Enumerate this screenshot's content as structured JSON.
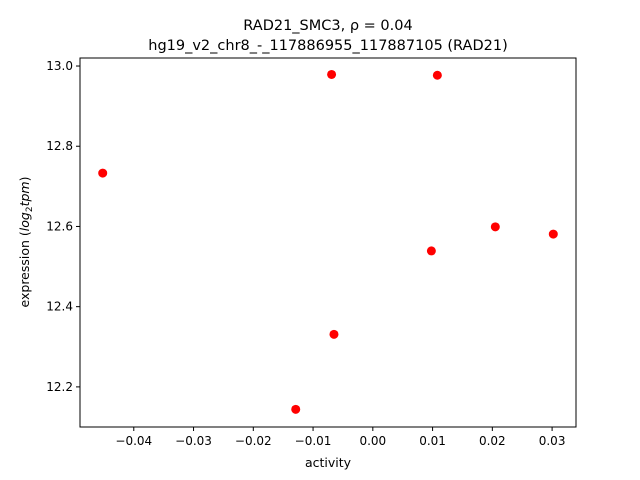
{
  "chart_data": {
    "type": "scatter",
    "title_line1": "RAD21_SMC3, ρ = 0.04",
    "title_line2": "hg19_v2_chr8_-_117886955_117887105 (RAD21)",
    "xlabel": "activity",
    "ylabel_main": "expression (",
    "ylabel_log": "log",
    "ylabel_sub": "2",
    "ylabel_tpm": "tpm",
    "ylabel_close": ")",
    "xlim": [
      -0.049,
      0.034
    ],
    "ylim": [
      12.1,
      13.02
    ],
    "xticks": [
      -0.04,
      -0.03,
      -0.02,
      -0.01,
      0.0,
      0.01,
      0.02,
      0.03
    ],
    "xtick_labels": [
      "−0.04",
      "−0.03",
      "−0.02",
      "−0.01",
      "0.00",
      "0.01",
      "0.02",
      "0.03"
    ],
    "yticks": [
      12.2,
      12.4,
      12.6,
      12.8,
      13.0
    ],
    "ytick_labels": [
      "12.2",
      "12.4",
      "12.6",
      "12.8",
      "13.0"
    ],
    "marker_color": "#ff0000",
    "grid": false,
    "points": [
      {
        "x": -0.0452,
        "y": 12.733
      },
      {
        "x": -0.0069,
        "y": 12.979
      },
      {
        "x": 0.0108,
        "y": 12.977
      },
      {
        "x": -0.0065,
        "y": 12.331
      },
      {
        "x": -0.0129,
        "y": 12.144
      },
      {
        "x": 0.0098,
        "y": 12.539
      },
      {
        "x": 0.0205,
        "y": 12.599
      },
      {
        "x": 0.0302,
        "y": 12.581
      }
    ]
  }
}
